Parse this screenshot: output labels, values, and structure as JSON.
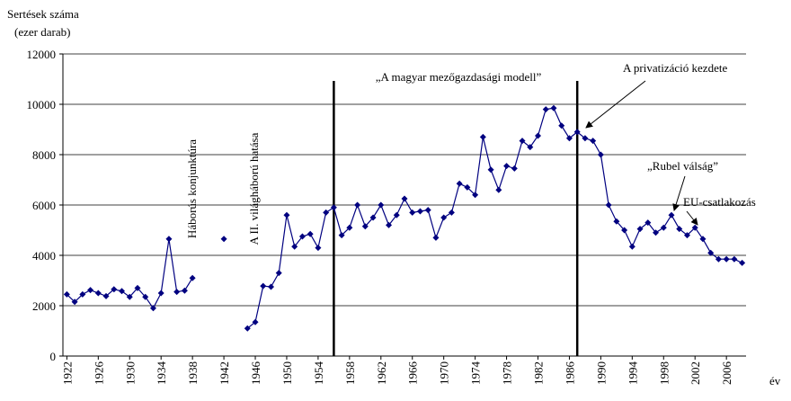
{
  "chart_data": {
    "type": "line",
    "y_label_lines": [
      "Sertések száma",
      "(ezer darab)"
    ],
    "x_label": "év",
    "x": [
      1922,
      1923,
      1924,
      1925,
      1926,
      1927,
      1928,
      1929,
      1930,
      1931,
      1932,
      1933,
      1934,
      1935,
      1936,
      1937,
      1938,
      1939,
      1940,
      1941,
      1942,
      1943,
      1944,
      1945,
      1946,
      1947,
      1948,
      1949,
      1950,
      1951,
      1952,
      1953,
      1954,
      1955,
      1956,
      1957,
      1958,
      1959,
      1960,
      1961,
      1962,
      1963,
      1964,
      1965,
      1966,
      1967,
      1968,
      1969,
      1970,
      1971,
      1972,
      1973,
      1974,
      1975,
      1976,
      1977,
      1978,
      1979,
      1980,
      1981,
      1982,
      1983,
      1984,
      1985,
      1986,
      1987,
      1988,
      1989,
      1990,
      1991,
      1992,
      1993,
      1994,
      1995,
      1996,
      1997,
      1998,
      1999,
      2000,
      2001,
      2002,
      2003,
      2004,
      2005,
      2006,
      2007,
      2008
    ],
    "series": [
      {
        "name": "Sertések száma",
        "color": "#000080",
        "values": [
          2450,
          2150,
          2450,
          2620,
          2500,
          2380,
          2650,
          2580,
          2350,
          2700,
          2350,
          1900,
          2500,
          4650,
          2550,
          2600,
          3100,
          null,
          null,
          null,
          4650,
          null,
          null,
          1100,
          1350,
          2780,
          2750,
          3300,
          5600,
          4350,
          4750,
          4850,
          4300,
          5700,
          5900,
          4800,
          5100,
          6000,
          5150,
          5500,
          6000,
          5200,
          5600,
          6250,
          5700,
          5750,
          5800,
          4700,
          5500,
          5700,
          6850,
          6700,
          6400,
          8700,
          7400,
          6600,
          7550,
          7450,
          8550,
          8300,
          8750,
          9800,
          9850,
          9150,
          8650,
          8900,
          8650,
          8550,
          8000,
          6000,
          5350,
          5000,
          4350,
          5050,
          5300,
          4900,
          5100,
          5600,
          5050,
          4800,
          5100,
          4650,
          4100,
          3850,
          3850,
          3850,
          3700
        ]
      }
    ],
    "xlim": [
      1921.5,
      2008.5
    ],
    "xticks": [
      1922,
      1926,
      1930,
      1934,
      1938,
      1942,
      1946,
      1950,
      1954,
      1958,
      1962,
      1966,
      1970,
      1974,
      1978,
      1982,
      1986,
      1990,
      1994,
      1998,
      2002,
      2006
    ],
    "ylim": [
      0,
      12000
    ],
    "yticks": [
      0,
      2000,
      4000,
      6000,
      8000,
      10000,
      12000
    ],
    "grid": true,
    "vlines": [
      1956,
      1987
    ],
    "annotations": [
      "„A magyar mezőgazdasági modell”",
      "A privatizáció kezdete",
      "„Rubel válság”",
      "EU-csatlakozás",
      "Háborús konjunktúra",
      "A II. világháború hatása"
    ]
  }
}
